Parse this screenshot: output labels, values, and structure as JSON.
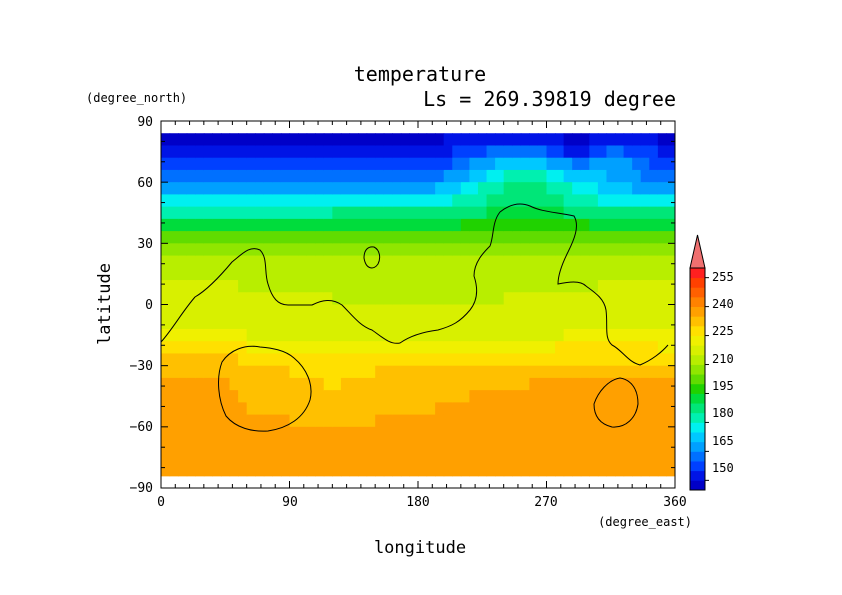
{
  "chart_data": {
    "type": "heatmap",
    "title": "temperature",
    "subtitle": "Ls = 269.39819 degree",
    "xlabel": "longitude",
    "ylabel": "latitude",
    "xunits": "(degree_east)",
    "yunits": "(degree_north)",
    "xlim": [
      0,
      360
    ],
    "ylim": [
      -90,
      90
    ],
    "xticks": [
      "0",
      "90",
      "180",
      "270",
      "360"
    ],
    "yticks": [
      "90",
      "60",
      "30",
      "0",
      "−30",
      "−60",
      "−90"
    ],
    "colorbar": {
      "tick_labels": [
        "255",
        "240",
        "225",
        "210",
        "195",
        "180",
        "165",
        "150"
      ],
      "levels": [
        145,
        150,
        155,
        160,
        165,
        170,
        175,
        180,
        185,
        190,
        195,
        200,
        205,
        210,
        215,
        220,
        225,
        230,
        235,
        240,
        245,
        250,
        255,
        260
      ],
      "colors": [
        "#0000c8",
        "#0014e6",
        "#0040ff",
        "#0070ff",
        "#00a0ff",
        "#00c8ff",
        "#00f0f0",
        "#00f0b0",
        "#00e678",
        "#00dc3c",
        "#20d200",
        "#60dc00",
        "#90e600",
        "#b8ee00",
        "#d8f000",
        "#f0f000",
        "#ffe000",
        "#ffc000",
        "#ffa000",
        "#ff8200",
        "#ff6000",
        "#ff4000",
        "#ff2020",
        "#f07070"
      ]
    },
    "latitudes": [
      85,
      75,
      65,
      55,
      45,
      35,
      25,
      15,
      5,
      -5,
      -15,
      -25,
      -35,
      -45,
      -55,
      -65,
      -75,
      -85
    ],
    "zonal_mean_temperature": [
      147,
      152,
      158,
      170,
      185,
      200,
      210,
      214,
      216,
      218,
      220,
      228,
      233,
      235,
      236,
      236,
      236,
      235
    ],
    "description_contours": "continent outline",
    "series": []
  }
}
